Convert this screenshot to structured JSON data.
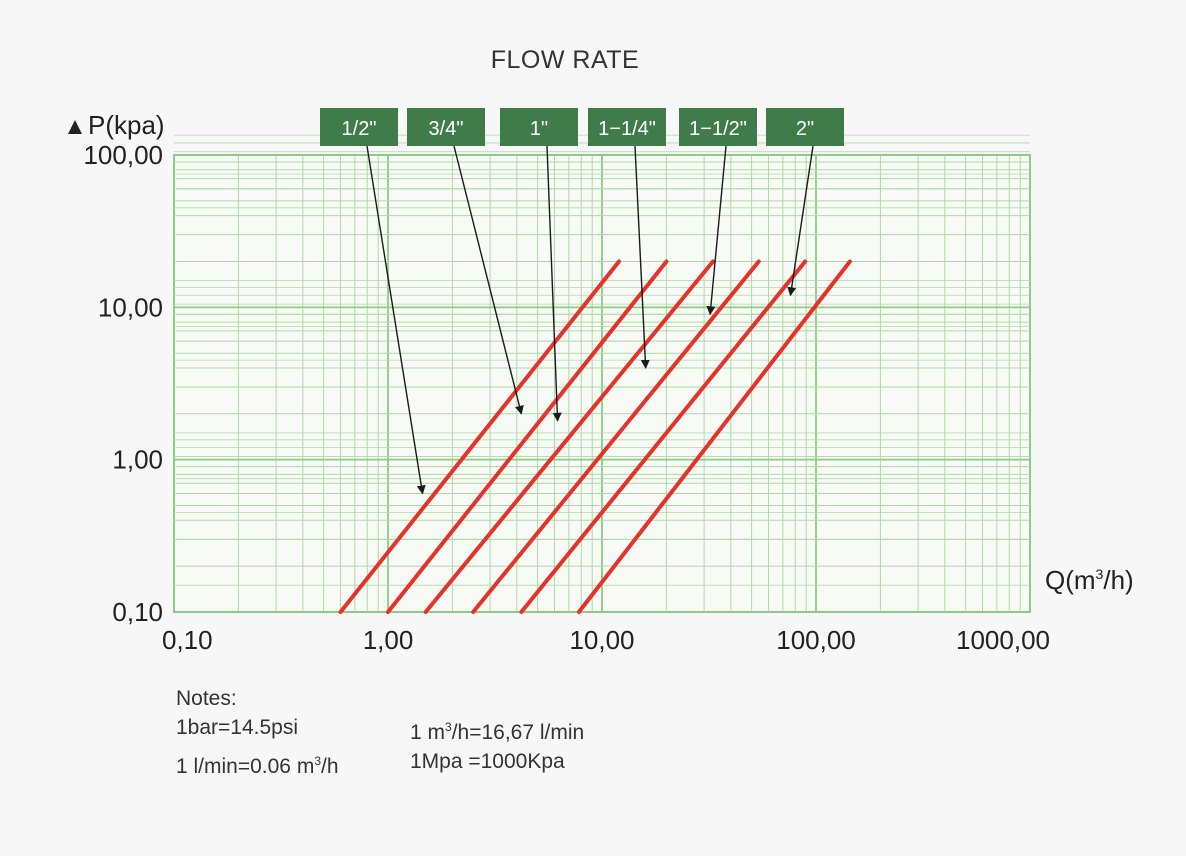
{
  "chart_data": {
    "type": "line",
    "title": "FLOW RATE",
    "ylabel": "P(kpa)",
    "xlabel_prefix": "Q(m",
    "xlabel_sup": "3",
    "xlabel_suffix": "/h)",
    "x_scale": "log",
    "y_scale": "log",
    "xlim": [
      0.1,
      1000
    ],
    "ylim": [
      0.1,
      100
    ],
    "grid": true,
    "x_ticks": [
      {
        "value": 0.1,
        "label": "0,10"
      },
      {
        "value": 1,
        "label": "1,00"
      },
      {
        "value": 10,
        "label": "10,00"
      },
      {
        "value": 100,
        "label": "100,00"
      },
      {
        "value": 1000,
        "label": "1000,00"
      }
    ],
    "y_ticks": [
      {
        "value": 0.1,
        "label": "0,10"
      },
      {
        "value": 1,
        "label": "1,00"
      },
      {
        "value": 10,
        "label": "10,00"
      },
      {
        "value": 100,
        "label": "100,00"
      }
    ],
    "series": [
      {
        "name": "1/2\"",
        "x": [
          0.6,
          12
        ],
        "y": [
          0.1,
          20
        ]
      },
      {
        "name": "3/4\"",
        "x": [
          1.0,
          20
        ],
        "y": [
          0.1,
          20
        ]
      },
      {
        "name": "1\"",
        "x": [
          1.5,
          33
        ],
        "y": [
          0.1,
          20
        ]
      },
      {
        "name": "1-1/4\"",
        "x": [
          2.5,
          54
        ],
        "y": [
          0.1,
          20
        ]
      },
      {
        "name": "1-1/2\"",
        "x": [
          4.2,
          89
        ],
        "y": [
          0.1,
          20
        ]
      },
      {
        "name": "2\"",
        "x": [
          7.8,
          144
        ],
        "y": [
          0.1,
          20
        ]
      }
    ],
    "labels": [
      {
        "text": "1/2\"",
        "target": [
          1.45,
          0.6
        ]
      },
      {
        "text": "3/4\"",
        "target": [
          4.2,
          2.0
        ]
      },
      {
        "text": "1\"",
        "target": [
          6.2,
          1.8
        ]
      },
      {
        "text": "1−1/4\"",
        "target": [
          16,
          4.0
        ]
      },
      {
        "text": "1−1/2\"",
        "target": [
          32,
          9.0
        ]
      },
      {
        "text": "2\"",
        "target": [
          76,
          12.0
        ]
      }
    ],
    "colors": {
      "line": "#e5322a",
      "grid": "#aed9a6",
      "grid_major": "#8ccc86",
      "tag": "#3f7c4a",
      "arrow": "#1a1a1a"
    }
  },
  "notes": {
    "heading": "Notes:",
    "row1_left": "1bar=14.5psi",
    "row1_right_prefix": "1 m",
    "row1_right_sup": "3",
    "row1_right_suffix": "/h=16,67 l/min",
    "row2_left_prefix": "1 l/min=0.06 m",
    "row2_left_sup": "3",
    "row2_left_suffix": "/h",
    "row2_right": "1Mpa =1000Kpa"
  }
}
